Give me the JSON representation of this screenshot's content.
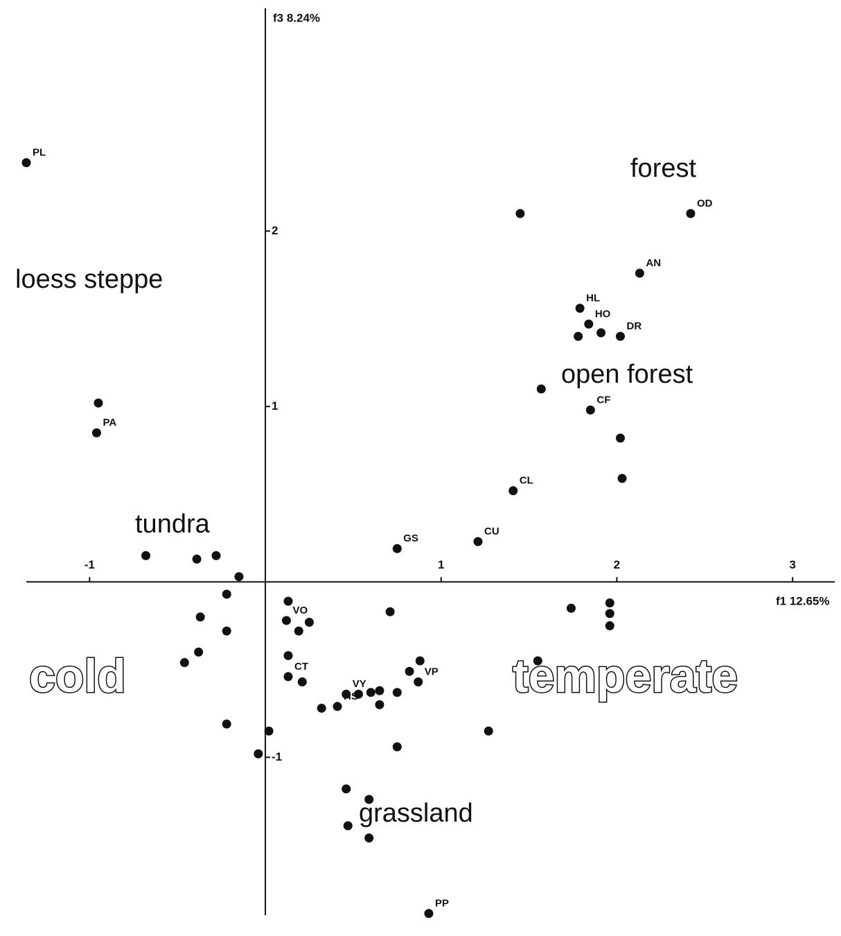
{
  "chart_data": {
    "type": "scatter",
    "x_label": "f1 12.65%",
    "y_label": "f3 8.24%",
    "xlim": [
      -1.36,
      3.24
    ],
    "ylim": [
      -1.9,
      3.27
    ],
    "xticks": [
      -1,
      1,
      2,
      3
    ],
    "yticks": [
      -1,
      1,
      2
    ],
    "color": "#111111",
    "x": [
      -1.36,
      1.45,
      2.42,
      2.13,
      1.79,
      1.84,
      1.78,
      1.91,
      2.02,
      1.57,
      1.85,
      2.02,
      2.03,
      -0.95,
      -0.96,
      1.41,
      1.21,
      0.75,
      -0.68,
      -0.39,
      -0.28,
      -0.15,
      -0.22,
      -0.37,
      0.13,
      0.71,
      1.74,
      1.96,
      1.96,
      1.96,
      0.12,
      0.25,
      0.19,
      -0.22,
      -0.38,
      -0.46,
      0.13,
      0.13,
      0.21,
      0.88,
      1.55,
      0.82,
      0.87,
      0.75,
      0.65,
      0.41,
      0.46,
      0.53,
      0.6,
      0.65,
      0.32,
      -0.22,
      0.02,
      -0.04,
      1.27,
      0.75,
      0.46,
      0.59,
      0.47,
      0.59,
      0.93
    ],
    "y": [
      2.39,
      2.1,
      2.1,
      1.76,
      1.56,
      1.47,
      1.4,
      1.42,
      1.4,
      1.1,
      0.98,
      0.82,
      0.59,
      1.02,
      0.85,
      0.52,
      0.23,
      0.19,
      0.15,
      0.13,
      0.15,
      0.03,
      -0.07,
      -0.2,
      -0.11,
      -0.17,
      -0.15,
      -0.12,
      -0.18,
      -0.25,
      -0.22,
      -0.23,
      -0.28,
      -0.28,
      -0.4,
      -0.46,
      -0.42,
      -0.54,
      -0.57,
      -0.45,
      -0.45,
      -0.51,
      -0.57,
      -0.63,
      -0.62,
      -0.71,
      -0.64,
      -0.64,
      -0.63,
      -0.7,
      -0.72,
      -0.81,
      -0.85,
      -0.98,
      -0.85,
      -0.94,
      -1.18,
      -1.24,
      -1.39,
      -1.46,
      -1.89
    ],
    "labels": [
      "PL",
      null,
      "OD",
      "AN",
      "HL",
      "HO",
      null,
      null,
      "DR",
      null,
      "CF",
      null,
      null,
      null,
      "PA",
      "CL",
      "CU",
      "GS",
      null,
      null,
      null,
      null,
      null,
      null,
      null,
      null,
      null,
      null,
      null,
      null,
      "VO",
      null,
      null,
      null,
      null,
      null,
      null,
      "CT",
      null,
      null,
      null,
      null,
      "VP",
      null,
      null,
      "HS",
      "VY",
      null,
      null,
      null,
      null,
      null,
      null,
      null,
      null,
      null,
      null,
      null,
      null,
      null,
      "PP"
    ],
    "annotations": [
      "forest",
      "loess steppe",
      "open forest",
      "tundra",
      "grassland",
      "cold",
      "temperate"
    ]
  }
}
